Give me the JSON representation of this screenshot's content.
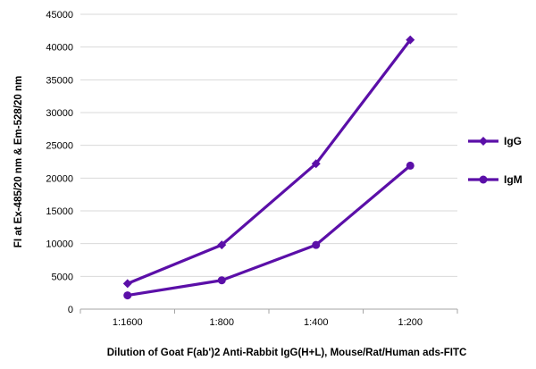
{
  "chart_data": {
    "type": "line",
    "x": [
      "1:1600",
      "1:800",
      "1:400",
      "1:200"
    ],
    "series": [
      {
        "name": "IgG",
        "values": [
          3900,
          9800,
          22200,
          41100
        ],
        "marker": "diamond"
      },
      {
        "name": "IgM",
        "values": [
          2100,
          4400,
          9800,
          21900
        ],
        "marker": "circle"
      }
    ],
    "xlabel": "Dilution of Goat F(ab')2 Anti-Rabbit IgG(H+L), Mouse/Rat/Human ads-FITC",
    "ylabel": "FI at Ex-485/20 nm & Em-528/20 nm",
    "ylim": [
      0,
      45000
    ],
    "yticks": [
      0,
      5000,
      10000,
      15000,
      20000,
      25000,
      30000,
      35000,
      40000,
      45000
    ],
    "grid": "horizontal",
    "legend": "right",
    "colors": {
      "series": "#5B0FA8",
      "grid": "#D9D9D9",
      "axis": "#A6A6A6"
    }
  }
}
